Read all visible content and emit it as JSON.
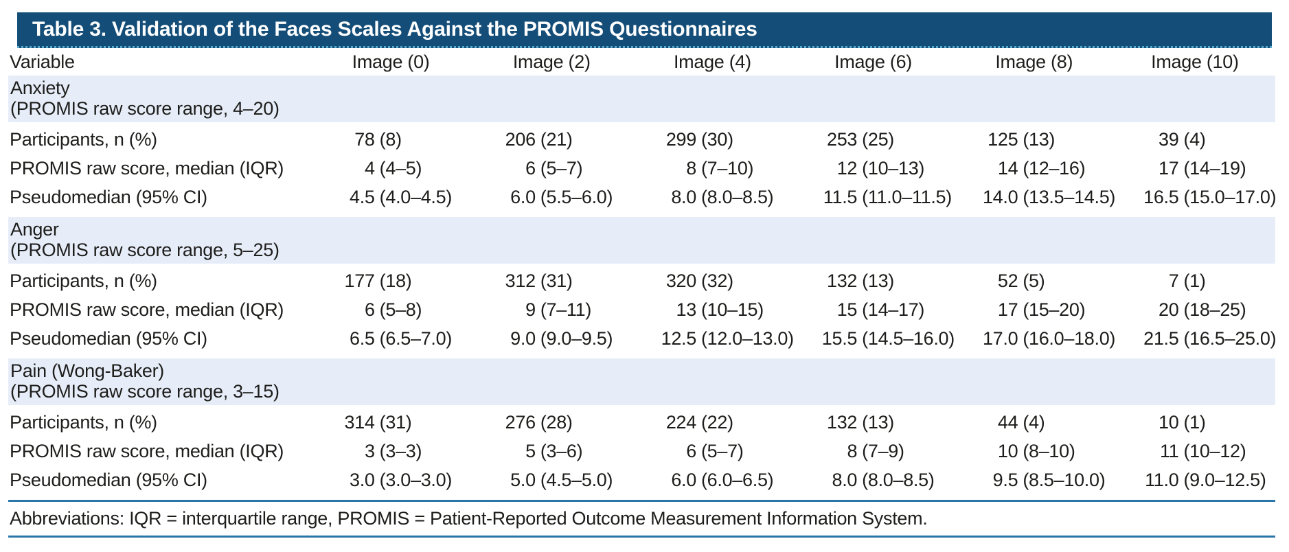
{
  "table": {
    "title": "Table 3. Validation of the Faces Scales Against the PROMIS Questionnaires",
    "columns": [
      "Variable",
      "Image (0)",
      "Image (2)",
      "Image (4)",
      "Image (6)",
      "Image (8)",
      "Image (10)"
    ],
    "sections": [
      {
        "name": "Anxiety",
        "subtitle": "(PROMIS raw score range, 4–20)",
        "rows": [
          {
            "label": "Participants, n (%)",
            "values": [
              "78 (8)",
              "206 (21)",
              "299 (30)",
              "253 (25)",
              "125 (13)",
              "39 (4)"
            ]
          },
          {
            "label": "PROMIS raw score, median (IQR)",
            "values": [
              "4 (4–5)",
              "6 (5–7)",
              "8 (7–10)",
              "12 (10–13)",
              "14 (12–16)",
              "17 (14–19)"
            ]
          },
          {
            "label": "Pseudomedian (95% CI)",
            "values": [
              "4.5 (4.0–4.5)",
              "6.0 (5.5–6.0)",
              "8.0 (8.0–8.5)",
              "11.5 (11.0–11.5)",
              "14.0 (13.5–14.5)",
              "16.5 (15.0–17.0)"
            ]
          }
        ]
      },
      {
        "name": "Anger",
        "subtitle": "(PROMIS raw score range, 5–25)",
        "rows": [
          {
            "label": "Participants, n (%)",
            "values": [
              "177 (18)",
              "312 (31)",
              "320 (32)",
              "132 (13)",
              "52 (5)",
              "7 (1)"
            ]
          },
          {
            "label": "PROMIS raw score, median (IQR)",
            "values": [
              "6 (5–8)",
              "9 (7–11)",
              "13 (10–15)",
              "15 (14–17)",
              "17 (15–20)",
              "20 (18–25)"
            ]
          },
          {
            "label": "Pseudomedian (95% CI)",
            "values": [
              "6.5 (6.5–7.0)",
              "9.0 (9.0–9.5)",
              "12.5 (12.0–13.0)",
              "15.5 (14.5–16.0)",
              "17.0 (16.0–18.0)",
              "21.5 (16.5–25.0)"
            ]
          }
        ]
      },
      {
        "name": "Pain (Wong-Baker)",
        "subtitle": "(PROMIS raw score range, 3–15)",
        "rows": [
          {
            "label": "Participants, n (%)",
            "values": [
              "314 (31)",
              "276 (28)",
              "224 (22)",
              "132 (13)",
              "44 (4)",
              "10 (1)"
            ]
          },
          {
            "label": "PROMIS raw score, median (IQR)",
            "values": [
              "3 (3–3)",
              "5 (3–6)",
              "6 (5–7)",
              "8 (7–9)",
              "10 (8–10)",
              "11 (10–12)"
            ]
          },
          {
            "label": "Pseudomedian (95% CI)",
            "values": [
              "3.0 (3.0–3.0)",
              "5.0 (4.5–5.0)",
              "6.0 (6.0–6.5)",
              "8.0 (8.0–8.5)",
              "9.5 (8.5–10.0)",
              "11.0 (9.0–12.5)"
            ]
          }
        ]
      }
    ],
    "footnote": "Abbreviations: IQR = interquartile range, PROMIS = Patient-Reported Outcome Measurement Information System.",
    "colors": {
      "header_bar": "#134d78",
      "header_bar_accent": "#59abce",
      "section_band": "#e7edf8",
      "rule": "#2a76a8",
      "text": "#1d1d1b",
      "title_text": "#ffffff"
    }
  }
}
